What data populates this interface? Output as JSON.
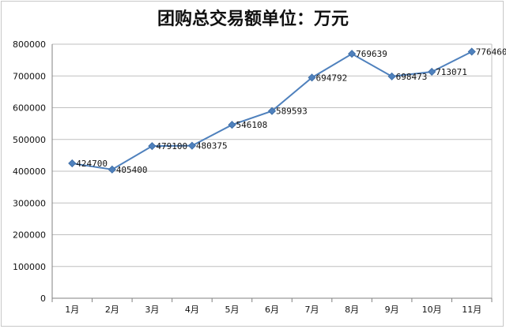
{
  "chart_data": {
    "type": "line",
    "title": "团购总交易额单位：万元",
    "xlabel": "",
    "ylabel": "",
    "categories": [
      "1月",
      "2月",
      "3月",
      "4月",
      "5月",
      "6月",
      "7月",
      "8月",
      "9月",
      "10月",
      "11月"
    ],
    "series": [
      {
        "values": [
          424700,
          405400,
          479100,
          480375,
          546108,
          589593,
          694792,
          769639,
          698473,
          713071,
          776460
        ],
        "labels": [
          "424700",
          "405400",
          "479100",
          "480375",
          "546108",
          "589593",
          "694792",
          "769639",
          "698473",
          "713071",
          "776460"
        ]
      }
    ],
    "ylim": [
      0,
      800000
    ],
    "yticks": [
      "0",
      "100000",
      "200000",
      "300000",
      "400000",
      "500000",
      "600000",
      "700000",
      "800000"
    ],
    "grid": true,
    "legend": "none",
    "colors": {
      "line": "#4f81bd",
      "marker": "#4f81bd",
      "grid": "#bfbfbf",
      "axis": "#808080"
    }
  }
}
